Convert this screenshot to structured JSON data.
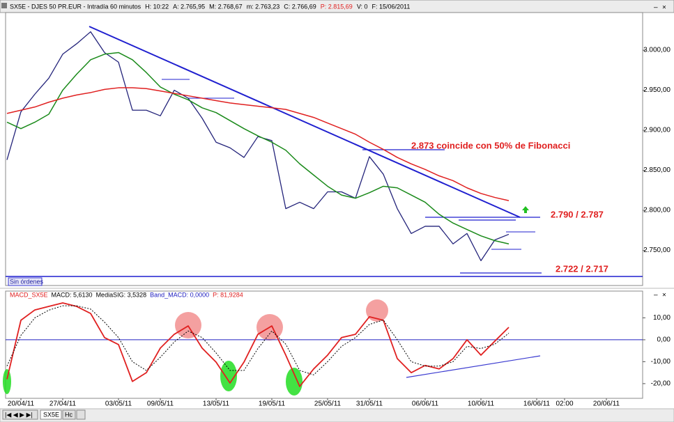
{
  "header": {
    "parts": [
      {
        "text": "SX5E - DJES 50 PR.EUR - Intradía 60 minutos",
        "color": "#000000"
      },
      {
        "text": "H: 10:22",
        "color": "#000000"
      },
      {
        "text": "A: 2.765,95",
        "color": "#000000"
      },
      {
        "text": "M: 2.768,67",
        "color": "#000000"
      },
      {
        "text": "m: 2.763,23",
        "color": "#000000"
      },
      {
        "text": "C: 2.766,69",
        "color": "#000000"
      },
      {
        "text": "P: 2.815,69",
        "color": "#e02020"
      },
      {
        "text": "V: 0",
        "color": "#000000"
      },
      {
        "text": "F: 15/06/2011",
        "color": "#000000"
      }
    ]
  },
  "status": "Sin órdenes",
  "tabs": [
    "SX5E",
    "Hc"
  ],
  "chart_data": [
    {
      "type": "line",
      "ylim": [
        2706,
        3047
      ],
      "yticks": [
        {
          "value": 2750,
          "label": "2.750,00"
        },
        {
          "value": 2800,
          "label": "2.800,00"
        },
        {
          "value": 2850,
          "label": "2.850,00"
        },
        {
          "value": 2900,
          "label": "2.900,00"
        },
        {
          "value": 2950,
          "label": "2.950,00"
        },
        {
          "value": 3000,
          "label": "3.000,00"
        }
      ],
      "series": [
        {
          "color": "#23237a",
          "width": 1.3,
          "values": [
            2863,
            2923,
            2945,
            2965,
            2995,
            3008,
            3023,
            2997,
            2985,
            2925,
            2925,
            2918,
            2950,
            2940,
            2915,
            2885,
            2878,
            2866,
            2892,
            2887,
            2802,
            2810,
            2802,
            2823,
            2823,
            2815,
            2867,
            2845,
            2802,
            2771,
            2780,
            2780,
            2758,
            2771,
            2737,
            2763,
            2770,
            null,
            null,
            null,
            null,
            null,
            null,
            null,
            null,
            null
          ]
        },
        {
          "color": "#1a8a1a",
          "width": 1.5,
          "values": [
            2910,
            2902,
            2910,
            2920,
            2950,
            2970,
            2988,
            2995,
            2997,
            2988,
            2972,
            2954,
            2945,
            2938,
            2928,
            2922,
            2912,
            2902,
            2893,
            2885,
            2875,
            2858,
            2844,
            2830,
            2819,
            2815,
            2822,
            2830,
            2828,
            2819,
            2810,
            2795,
            2784,
            2776,
            2768,
            2762,
            2758,
            null,
            null,
            null,
            null,
            null,
            null,
            null,
            null,
            null
          ]
        },
        {
          "color": "#e02020",
          "width": 1.5,
          "values": [
            2921,
            2925,
            2929,
            2935,
            2940,
            2944,
            2947,
            2951,
            2953,
            2953,
            2952,
            2949,
            2946,
            2943,
            2940,
            2937,
            2934,
            2932,
            2930,
            2928,
            2926,
            2921,
            2916,
            2909,
            2902,
            2895,
            2885,
            2876,
            2866,
            2858,
            2851,
            2843,
            2837,
            2828,
            2821,
            2816,
            2812,
            null,
            null,
            null,
            null,
            null,
            null,
            null,
            null,
            null
          ]
        }
      ],
      "annotations": [
        {
          "text": "2.873 coincide con 50% de Fibonacci",
          "color": "#e02020"
        },
        {
          "text": "2.790 / 2.787",
          "color": "#e02020"
        },
        {
          "text": "2.722 / 2.717",
          "color": "#e02020"
        }
      ]
    },
    {
      "type": "line",
      "ylim": [
        -26.7,
        22.2
      ],
      "yticks": [
        {
          "value": -20,
          "label": "-20,00"
        },
        {
          "value": -10,
          "label": "-10,00"
        },
        {
          "value": 0,
          "label": "0,00"
        },
        {
          "value": 10,
          "label": "10,00"
        }
      ],
      "band": 0,
      "band_color": "#2020c0",
      "legend": [
        {
          "text": "MACD_SX5E",
          "color": "#e02020"
        },
        {
          "text": "MACD: 5,6130",
          "color": "#000000"
        },
        {
          "text": "MediaSIG: 3,5328",
          "color": "#000000"
        },
        {
          "text": "Band_MACD: 0,0000",
          "color": "#2020c0"
        },
        {
          "text": "P: 81,9284",
          "color": "#e02020"
        }
      ],
      "categories": [
        null,
        "20/04/11",
        null,
        null,
        "27/04/11",
        null,
        null,
        null,
        "03/05/11",
        null,
        null,
        "09/05/11",
        null,
        null,
        null,
        "13/05/11",
        null,
        null,
        null,
        "19/05/11",
        null,
        null,
        null,
        "25/05/11",
        null,
        null,
        "31/05/11",
        null,
        null,
        null,
        "06/06/11",
        null,
        null,
        null,
        "10/06/11",
        null,
        null,
        null,
        "16/06/11",
        null,
        "02:00",
        null,
        null,
        "20/06/11",
        null,
        null
      ],
      "series": [
        {
          "color": "#e02020",
          "width": 1.8,
          "dashed": false,
          "values": [
            -18,
            8.9,
            13.6,
            15.2,
            16.8,
            15.2,
            12,
            1,
            -2.2,
            -19,
            -15,
            -3.8,
            2.5,
            6.3,
            -3.8,
            -10.2,
            -19.7,
            -10.2,
            2.5,
            6.3,
            -7,
            -21.3,
            -13.3,
            -7,
            1,
            2.5,
            10.5,
            8.9,
            -8.6,
            -15,
            -11.7,
            -13.3,
            -8.6,
            0,
            -7,
            -0.6,
            5.7,
            null,
            null,
            null,
            null,
            null,
            null,
            null,
            null,
            null
          ]
        },
        {
          "color": "#000000",
          "width": 1,
          "dashed": true,
          "values": [
            -12,
            2,
            10,
            13.5,
            15.5,
            15.5,
            14,
            8,
            1,
            -10,
            -14,
            -8,
            -1,
            4,
            1,
            -6,
            -14,
            -14,
            -4,
            4,
            -2,
            -14,
            -16,
            -10,
            -3,
            1,
            7,
            9,
            0,
            -10,
            -12,
            -12,
            -10,
            -3,
            -4,
            -2,
            3,
            null,
            null,
            null,
            null,
            null,
            null,
            null,
            null,
            null
          ]
        }
      ]
    }
  ]
}
